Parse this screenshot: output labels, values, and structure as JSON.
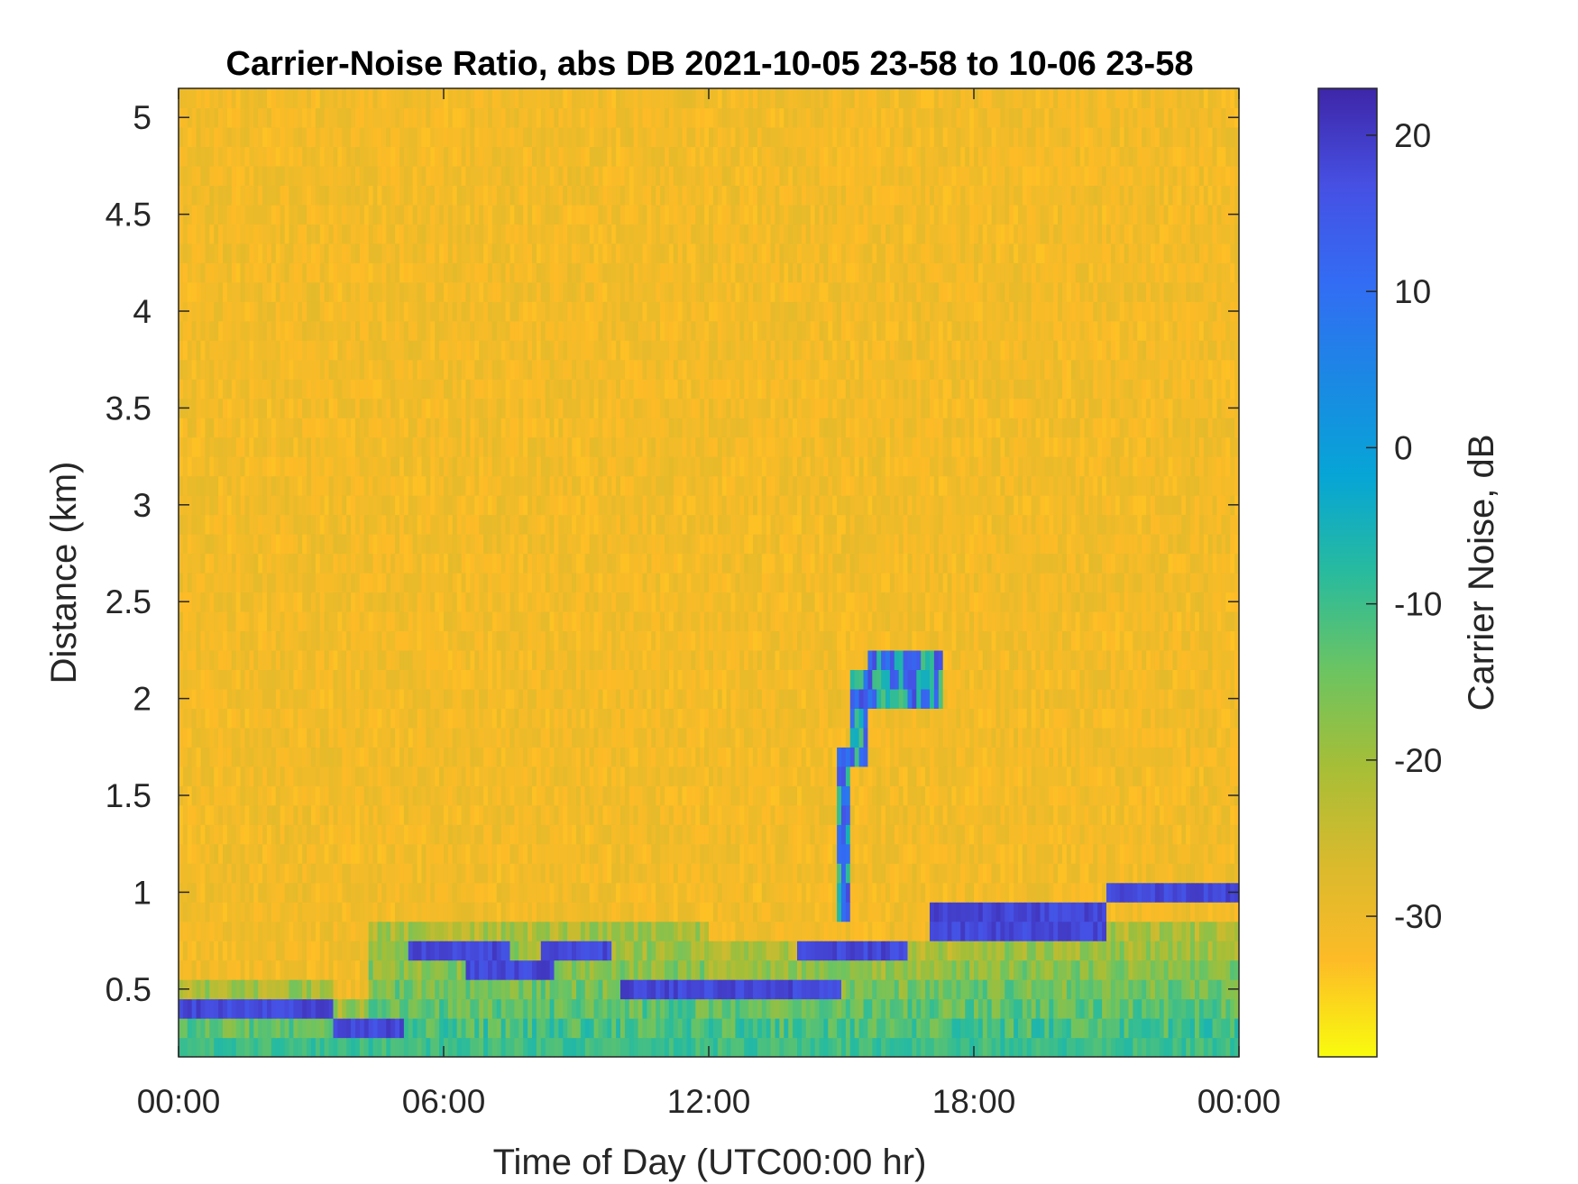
{
  "chart_data": {
    "type": "heatmap",
    "title": "Carrier-Noise Ratio, abs DB 2021-10-05 23-58 to 10-06 23-58",
    "xlabel": "Time of Day (UTC00:00 hr)",
    "ylabel": "Distance (km)",
    "x_ticks": [
      "00:00",
      "06:00",
      "12:00",
      "18:00",
      "00:00"
    ],
    "x_tick_hours": [
      0,
      6,
      12,
      18,
      24
    ],
    "xlim_hours": [
      0,
      24
    ],
    "y_ticks": [
      "0.5",
      "1",
      "1.5",
      "2",
      "2.5",
      "3",
      "3.5",
      "4",
      "4.5",
      "5"
    ],
    "y_tick_values": [
      0.5,
      1,
      1.5,
      2,
      2.5,
      3,
      3.5,
      4,
      4.5,
      5
    ],
    "ylim": [
      0.15,
      5.15
    ],
    "colorbar": {
      "label": "Carrier Noise, dB",
      "ticks": [
        "20",
        "10",
        "0",
        "-10",
        "-20",
        "-30"
      ],
      "tick_values": [
        20,
        10,
        0,
        -10,
        -20,
        -30
      ],
      "clim": [
        -39,
        23
      ],
      "colormap": "parula",
      "colormap_stops": [
        "#f9fb0e",
        "#fdbb27",
        "#d9ba2d",
        "#a6be37",
        "#6bc462",
        "#28bb9e",
        "#06a5d6",
        "#1b88e4",
        "#336cf4",
        "#4650e3",
        "#3e26a8"
      ]
    },
    "background_value_db": -31,
    "layers": [
      {
        "name": "low-level band",
        "segments": [
          {
            "t": [
              0,
              3.5
            ],
            "top_km": 0.55
          },
          {
            "t": [
              3.5,
              4.3
            ],
            "top_km": 0.45
          },
          {
            "t": [
              4.3,
              12
            ],
            "top_km": 0.85
          },
          {
            "t": [
              12,
              17.5
            ],
            "top_km": 0.75
          },
          {
            "t": [
              17.5,
              24
            ],
            "top_km": 0.85
          }
        ]
      },
      {
        "name": "strong return layer",
        "value_db": 20,
        "segments": [
          {
            "t": [
              0,
              3.5
            ],
            "km": [
              0.35,
              0.45
            ]
          },
          {
            "t": [
              3.5,
              5.1
            ],
            "km": [
              0.25,
              0.35
            ]
          },
          {
            "t": [
              5.2,
              7.5
            ],
            "km": [
              0.65,
              0.75
            ]
          },
          {
            "t": [
              6.5,
              8.5
            ],
            "km": [
              0.55,
              0.65
            ]
          },
          {
            "t": [
              8.2,
              9.8
            ],
            "km": [
              0.65,
              0.75
            ]
          },
          {
            "t": [
              10,
              15
            ],
            "km": [
              0.45,
              0.55
            ]
          },
          {
            "t": [
              14,
              16.5
            ],
            "km": [
              0.65,
              0.75
            ]
          },
          {
            "t": [
              17,
              21
            ],
            "km": [
              0.75,
              0.95
            ]
          },
          {
            "t": [
              21,
              24
            ],
            "km": [
              0.95,
              1.05
            ]
          }
        ]
      },
      {
        "name": "rising plume",
        "segments": [
          {
            "t": [
              14.9,
              15.2
            ],
            "km": [
              0.85,
              1.75
            ]
          },
          {
            "t": [
              15.2,
              15.6
            ],
            "km": [
              1.65,
              2.15
            ]
          },
          {
            "t": [
              15.6,
              17.3
            ],
            "km": [
              1.95,
              2.25
            ]
          }
        ]
      }
    ]
  }
}
